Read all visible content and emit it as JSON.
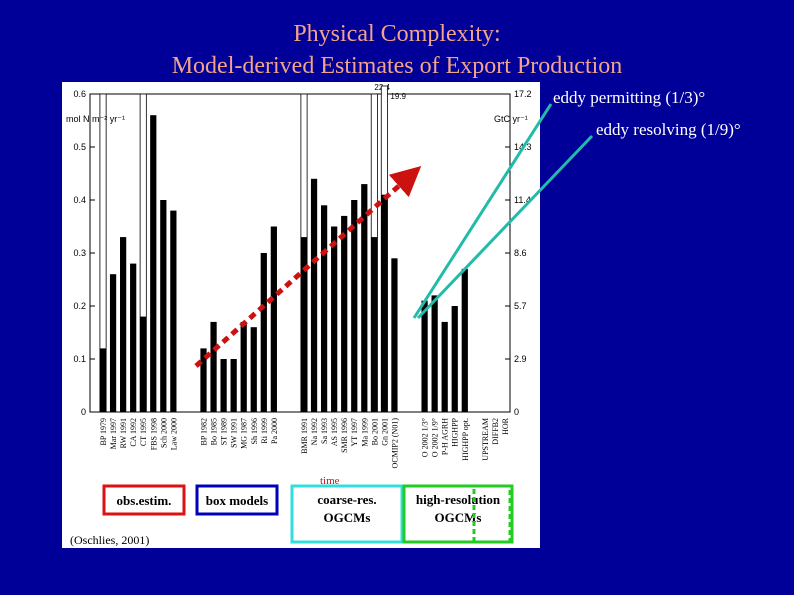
{
  "title_line1": "Physical Complexity:",
  "title_line2": "Model-derived Estimates of Export Production",
  "annotation_eddy_permitting": "eddy permitting (1/3)°",
  "annotation_eddy_resolving": "eddy resolving (1/9)°",
  "citation": "(Oschlies, 2001)",
  "time_label": "time",
  "colors": {
    "background": "#000099",
    "title": "#f2a38a",
    "trend_arrow": "#cc1111",
    "callout_lines": "#22bbaa"
  },
  "chart_data": {
    "type": "bar",
    "left_axis_label": "mol N m⁻² yr⁻¹",
    "right_axis_label": "GtC yr⁻¹",
    "ylim": [
      0,
      0.6
    ],
    "left_ticks": [
      "0",
      "0.1",
      "0.2",
      "0.3",
      "0.4",
      "0.5",
      "0.6"
    ],
    "left_tick_values": [
      0,
      0.1,
      0.2,
      0.3,
      0.4,
      0.5,
      0.6
    ],
    "right_ticks": [
      "0",
      "2.9",
      "5.7",
      "8.6",
      "11.4",
      "14.3",
      "17.2"
    ],
    "right_tick_values": [
      0,
      0.1,
      0.2,
      0.3,
      0.4,
      0.5,
      0.6
    ],
    "overflow_labels": [
      "22.4",
      "19.9"
    ],
    "bars": [
      {
        "label": "BP 1979",
        "value": 0.12,
        "upper": 0.16
      },
      {
        "label": "Mar 1997",
        "value": 0.26
      },
      {
        "label": "RW 1991",
        "value": 0.33
      },
      {
        "label": "CA 1992",
        "value": 0.28
      },
      {
        "label": "CT 1995",
        "value": 0.18,
        "upper": 0.26
      },
      {
        "label": "FBS 1998",
        "value": 0.56
      },
      {
        "label": "Sch 2000",
        "value": 0.4
      },
      {
        "label": "Law 2000",
        "value": 0.38
      },
      {
        "label": "",
        "value": null
      },
      {
        "label": "",
        "value": null
      },
      {
        "label": "BP 1982",
        "value": 0.12
      },
      {
        "label": "Bo 1985",
        "value": 0.17
      },
      {
        "label": "ST 1989",
        "value": 0.1
      },
      {
        "label": "SW 1991",
        "value": 0.1
      },
      {
        "label": "MG 1987",
        "value": 0.17
      },
      {
        "label": "Sh 1996",
        "value": 0.16
      },
      {
        "label": "Ri 1999",
        "value": 0.3
      },
      {
        "label": "Pa 2000",
        "value": 0.35
      },
      {
        "label": "",
        "value": null
      },
      {
        "label": "",
        "value": null
      },
      {
        "label": "BMR 1991",
        "value": 0.33,
        "upper": 0.39
      },
      {
        "label": "Na 1992",
        "value": 0.44
      },
      {
        "label": "Sa 1993",
        "value": 0.39
      },
      {
        "label": "AS 1995",
        "value": 0.35
      },
      {
        "label": "SMR 1996",
        "value": 0.37
      },
      {
        "label": "YT 1997",
        "value": 0.4
      },
      {
        "label": "Ma 1999",
        "value": 0.43
      },
      {
        "label": "Bo 2001",
        "value": 0.33,
        "upper": 0.39
      },
      {
        "label": "Gn 2001",
        "value": 0.41,
        "upper": 0.64
      },
      {
        "label": "OCMIP2 (N01)",
        "value": 0.29
      },
      {
        "label": "",
        "value": null
      },
      {
        "label": "",
        "value": null
      },
      {
        "label": "O 2002 1/3°",
        "value": 0.21
      },
      {
        "label": "O 2002 1/9°",
        "value": 0.22
      },
      {
        "label": "P-H AGRH",
        "value": 0.17
      },
      {
        "label": "HIGHPP",
        "value": 0.2
      },
      {
        "label": "HIGHPP opt.",
        "value": 0.27
      },
      {
        "label": "",
        "value": null
      },
      {
        "label": "UPSTREAM",
        "value": null
      },
      {
        "label": "DIFFB2",
        "value": null
      },
      {
        "label": "HOR",
        "value": null
      }
    ],
    "groups": [
      {
        "label": "obs.estim.",
        "color": "#dd1111"
      },
      {
        "label": "box models",
        "color": "#0000bb"
      },
      {
        "label": "coarse-res.\nOGCMs",
        "color": "#33dddd"
      },
      {
        "label": "high-resolution\nOGCMs",
        "color": "#22cc22"
      },
      {
        "label": "",
        "color": "#22cc22"
      }
    ]
  }
}
